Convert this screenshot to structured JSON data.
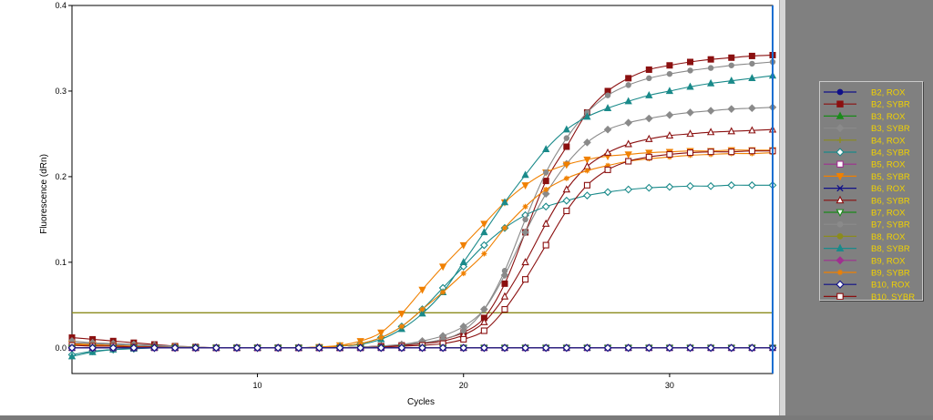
{
  "chart_data": {
    "type": "line",
    "xlabel": "Cycles",
    "ylabel": "Fluorescence (dRn)",
    "xlim": [
      1,
      35
    ],
    "ylim": [
      -0.03,
      0.4
    ],
    "xticks": [
      "10",
      "20",
      "30"
    ],
    "yticks": [
      "0.0",
      "0.1",
      "0.2",
      "0.3",
      "0.4"
    ],
    "grid": true,
    "legend_position": "right",
    "threshold": {
      "value": 0.041,
      "color": "#8b8b1e"
    },
    "cursor_cycle": 35,
    "x": [
      1,
      2,
      3,
      4,
      5,
      6,
      7,
      8,
      9,
      10,
      11,
      12,
      13,
      14,
      15,
      16,
      17,
      18,
      19,
      20,
      21,
      22,
      23,
      24,
      25,
      26,
      27,
      28,
      29,
      30,
      31,
      32,
      33,
      34,
      35
    ],
    "series": [
      {
        "name": "B2, ROX",
        "color": "#101088",
        "marker": "circle",
        "values": [
          0.0,
          0.0,
          0.0,
          0.0,
          0.0,
          0.0,
          0.0,
          0.0,
          0.0,
          0.0,
          0.0,
          0.0,
          0.0,
          0.0,
          0.0,
          0.0,
          0.0,
          0.0,
          0.0,
          0.0,
          0.0,
          0.0,
          0.0,
          0.0,
          0.0,
          0.0,
          0.0,
          0.0,
          0.0,
          0.0,
          0.0,
          0.0,
          0.0,
          0.0,
          0.0
        ]
      },
      {
        "name": "B2, SYBR",
        "color": "#8b1010",
        "marker": "square",
        "values": [
          0.012,
          0.01,
          0.008,
          0.006,
          0.004,
          0.002,
          0.001,
          0.0,
          0.0,
          0.0,
          0.0,
          0.0,
          0.0,
          0.0,
          0.001,
          0.002,
          0.003,
          0.005,
          0.01,
          0.018,
          0.035,
          0.075,
          0.135,
          0.195,
          0.235,
          0.275,
          0.3,
          0.315,
          0.325,
          0.33,
          0.334,
          0.337,
          0.339,
          0.341,
          0.342
        ]
      },
      {
        "name": "B3, ROX",
        "color": "#1a8a1a",
        "marker": "triangle",
        "values": [
          0.0,
          0.0,
          0.0,
          0.0,
          0.0,
          0.0,
          0.0,
          0.0,
          0.0,
          0.0,
          0.0,
          0.0,
          0.0,
          0.0,
          0.0,
          0.0,
          0.0,
          0.0,
          0.0,
          0.0,
          0.0,
          0.0,
          0.0,
          0.0,
          0.0,
          0.0,
          0.0,
          0.0,
          0.0,
          0.0,
          0.0,
          0.0,
          0.0,
          0.0,
          0.0
        ]
      },
      {
        "name": "B3, SYBR",
        "color": "#8a8a8a",
        "marker": "diamond",
        "values": [
          0.008,
          0.006,
          0.005,
          0.004,
          0.003,
          0.002,
          0.001,
          0.0,
          0.0,
          0.0,
          0.0,
          0.0,
          0.0,
          0.0,
          0.001,
          0.002,
          0.004,
          0.008,
          0.014,
          0.025,
          0.045,
          0.085,
          0.135,
          0.18,
          0.215,
          0.24,
          0.255,
          0.263,
          0.268,
          0.272,
          0.275,
          0.277,
          0.279,
          0.28,
          0.281
        ]
      },
      {
        "name": "B4, ROX",
        "color": "#8b8b1e",
        "marker": "plus",
        "values": [
          0.0,
          0.0,
          0.0,
          0.0,
          0.0,
          0.0,
          0.0,
          0.0,
          0.0,
          0.0,
          0.0,
          0.0,
          0.0,
          0.0,
          0.0,
          0.0,
          0.0,
          0.0,
          0.0,
          0.0,
          0.0,
          0.0,
          0.0,
          0.0,
          0.0,
          0.0,
          0.0,
          0.0,
          0.0,
          0.0,
          0.0,
          0.0,
          0.0,
          0.0,
          0.0
        ]
      },
      {
        "name": "B4, SYBR",
        "color": "#1a8a8a",
        "marker": "open-diamond",
        "values": [
          -0.008,
          -0.004,
          -0.002,
          -0.001,
          0.0,
          0.0,
          0.0,
          0.0,
          0.0,
          0.0,
          0.0,
          0.0,
          0.001,
          0.002,
          0.005,
          0.012,
          0.025,
          0.045,
          0.07,
          0.095,
          0.12,
          0.14,
          0.155,
          0.165,
          0.172,
          0.178,
          0.182,
          0.185,
          0.187,
          0.188,
          0.189,
          0.189,
          0.19,
          0.19,
          0.19
        ]
      },
      {
        "name": "B5, ROX",
        "color": "#a03090",
        "marker": "open-square",
        "values": [
          0.0,
          0.0,
          0.0,
          0.0,
          0.0,
          0.0,
          0.0,
          0.0,
          0.0,
          0.0,
          0.0,
          0.0,
          0.0,
          0.0,
          0.0,
          0.0,
          0.0,
          0.0,
          0.0,
          0.0,
          0.0,
          0.0,
          0.0,
          0.0,
          0.0,
          0.0,
          0.0,
          0.0,
          0.0,
          0.0,
          0.0,
          0.0,
          0.0,
          0.0,
          0.0
        ]
      },
      {
        "name": "B5, SYBR",
        "color": "#f08000",
        "marker": "triangle-down",
        "values": [
          0.005,
          0.004,
          0.003,
          0.002,
          0.001,
          0.001,
          0.0,
          0.0,
          0.0,
          0.0,
          0.0,
          0.0,
          0.001,
          0.003,
          0.008,
          0.018,
          0.04,
          0.068,
          0.095,
          0.12,
          0.145,
          0.17,
          0.19,
          0.205,
          0.214,
          0.22,
          0.224,
          0.226,
          0.228,
          0.229,
          0.23,
          0.23,
          0.231,
          0.231,
          0.231
        ]
      },
      {
        "name": "B6, ROX",
        "color": "#101088",
        "marker": "x",
        "values": [
          0.0,
          0.0,
          0.0,
          0.0,
          0.0,
          0.0,
          0.0,
          0.0,
          0.0,
          0.0,
          0.0,
          0.0,
          0.0,
          0.0,
          0.0,
          0.0,
          0.0,
          0.0,
          0.0,
          0.0,
          0.0,
          0.0,
          0.0,
          0.0,
          0.0,
          0.0,
          0.0,
          0.0,
          0.0,
          0.0,
          0.0,
          0.0,
          0.0,
          0.0,
          0.0
        ]
      },
      {
        "name": "B6, SYBR",
        "color": "#8b1010",
        "marker": "open-triangle",
        "values": [
          0.004,
          0.003,
          0.002,
          0.001,
          0.001,
          0.0,
          0.0,
          0.0,
          0.0,
          0.0,
          0.0,
          0.0,
          0.0,
          0.0,
          0.001,
          0.002,
          0.003,
          0.005,
          0.008,
          0.015,
          0.03,
          0.06,
          0.1,
          0.145,
          0.185,
          0.212,
          0.228,
          0.238,
          0.244,
          0.248,
          0.25,
          0.252,
          0.253,
          0.254,
          0.255
        ]
      },
      {
        "name": "B7, ROX",
        "color": "#1a8a1a",
        "marker": "open-triangle-down",
        "values": [
          0.0,
          0.0,
          0.0,
          0.0,
          0.0,
          0.0,
          0.0,
          0.0,
          0.0,
          0.0,
          0.0,
          0.0,
          0.0,
          0.0,
          0.0,
          0.0,
          0.0,
          0.0,
          0.0,
          0.0,
          0.0,
          0.0,
          0.0,
          0.0,
          0.0,
          0.0,
          0.0,
          0.0,
          0.0,
          0.0,
          0.0,
          0.0,
          0.0,
          0.0,
          0.0
        ]
      },
      {
        "name": "B7, SYBR",
        "color": "#8a8a8a",
        "marker": "circle",
        "values": [
          0.006,
          0.005,
          0.004,
          0.003,
          0.002,
          0.001,
          0.0,
          0.0,
          0.0,
          0.0,
          0.0,
          0.0,
          0.0,
          0.0,
          0.001,
          0.002,
          0.004,
          0.006,
          0.01,
          0.02,
          0.045,
          0.09,
          0.15,
          0.205,
          0.245,
          0.275,
          0.295,
          0.307,
          0.315,
          0.32,
          0.324,
          0.327,
          0.33,
          0.332,
          0.334
        ]
      },
      {
        "name": "B8, ROX",
        "color": "#8b8b1e",
        "marker": "circle",
        "values": [
          0.0,
          0.0,
          0.0,
          0.0,
          0.0,
          0.0,
          0.0,
          0.0,
          0.0,
          0.0,
          0.0,
          0.0,
          0.0,
          0.0,
          0.0,
          0.0,
          0.0,
          0.0,
          0.0,
          0.0,
          0.0,
          0.0,
          0.0,
          0.0,
          0.0,
          0.0,
          0.0,
          0.0,
          0.0,
          0.0,
          0.0,
          0.0,
          0.0,
          0.0,
          0.0
        ]
      },
      {
        "name": "B8, SYBR",
        "color": "#1a8a8a",
        "marker": "triangle",
        "values": [
          -0.01,
          -0.005,
          -0.002,
          -0.001,
          0.0,
          0.0,
          0.0,
          0.0,
          0.0,
          0.0,
          0.0,
          0.0,
          0.0,
          0.002,
          0.004,
          0.01,
          0.022,
          0.04,
          0.065,
          0.1,
          0.135,
          0.17,
          0.202,
          0.232,
          0.255,
          0.27,
          0.28,
          0.288,
          0.295,
          0.3,
          0.305,
          0.309,
          0.312,
          0.315,
          0.318
        ]
      },
      {
        "name": "B9, ROX",
        "color": "#a03090",
        "marker": "diamond",
        "values": [
          0.0,
          0.0,
          0.0,
          0.0,
          0.0,
          0.0,
          0.0,
          0.0,
          0.0,
          0.0,
          0.0,
          0.0,
          0.0,
          0.0,
          0.0,
          0.0,
          0.0,
          0.0,
          0.0,
          0.0,
          0.0,
          0.0,
          0.0,
          0.0,
          0.0,
          0.0,
          0.0,
          0.0,
          0.0,
          0.0,
          0.0,
          0.0,
          0.0,
          0.0,
          0.0
        ]
      },
      {
        "name": "B9, SYBR",
        "color": "#f08000",
        "marker": "star",
        "values": [
          0.004,
          0.003,
          0.002,
          0.001,
          0.001,
          0.0,
          0.0,
          0.0,
          0.0,
          0.0,
          0.0,
          0.0,
          0.001,
          0.002,
          0.005,
          0.012,
          0.025,
          0.045,
          0.065,
          0.087,
          0.11,
          0.14,
          0.165,
          0.185,
          0.198,
          0.207,
          0.213,
          0.218,
          0.221,
          0.223,
          0.225,
          0.226,
          0.227,
          0.227,
          0.228
        ]
      },
      {
        "name": "B10, ROX",
        "color": "#101088",
        "marker": "open-diamond",
        "values": [
          0.0,
          0.0,
          0.0,
          0.0,
          0.0,
          0.0,
          0.0,
          0.0,
          0.0,
          0.0,
          0.0,
          0.0,
          0.0,
          0.0,
          0.0,
          0.0,
          0.0,
          0.0,
          0.0,
          0.0,
          0.0,
          0.0,
          0.0,
          0.0,
          0.0,
          0.0,
          0.0,
          0.0,
          0.0,
          0.0,
          0.0,
          0.0,
          0.0,
          0.0,
          0.0
        ]
      },
      {
        "name": "B10, SYBR",
        "color": "#8b1010",
        "marker": "open-square",
        "values": [
          0.003,
          0.002,
          0.002,
          0.001,
          0.001,
          0.0,
          0.0,
          0.0,
          0.0,
          0.0,
          0.0,
          0.0,
          0.0,
          0.0,
          0.0,
          0.001,
          0.002,
          0.003,
          0.005,
          0.01,
          0.02,
          0.045,
          0.08,
          0.12,
          0.16,
          0.19,
          0.208,
          0.218,
          0.223,
          0.226,
          0.228,
          0.229,
          0.229,
          0.23,
          0.23
        ]
      }
    ]
  }
}
